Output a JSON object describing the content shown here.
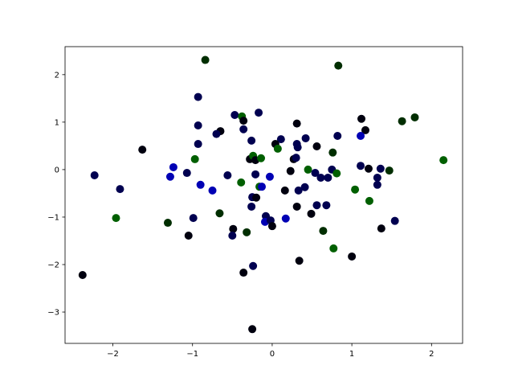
{
  "chart_data": {
    "type": "scatter",
    "title": "",
    "xlabel": "",
    "ylabel": "",
    "xlim": [
      -2.6,
      2.39
    ],
    "ylim": [
      -3.66,
      2.59
    ],
    "grid": false,
    "x_ticks": [
      -2,
      -1,
      0,
      1,
      2
    ],
    "y_ticks": [
      -3,
      -2,
      -1,
      0,
      1,
      2
    ],
    "x_tick_labels": [
      "−2",
      "−1",
      "0",
      "1",
      "2"
    ],
    "y_tick_labels": [
      "−3",
      "−2",
      "−1",
      "0",
      "1",
      "2"
    ],
    "colors": {
      "black": "#00000f",
      "navy": "#000050",
      "blue": "#0000b4",
      "darkgreen": "#002e00",
      "green": "#005f00"
    },
    "points": [
      [
        -0.84,
        2.31,
        "darkgreen"
      ],
      [
        0.83,
        2.19,
        "darkgreen"
      ],
      [
        -0.93,
        1.53,
        "navy"
      ],
      [
        -0.47,
        1.15,
        "navy"
      ],
      [
        -0.38,
        1.12,
        "green"
      ],
      [
        -0.36,
        1.03,
        "black"
      ],
      [
        -0.17,
        1.2,
        "navy"
      ],
      [
        1.12,
        1.07,
        "black"
      ],
      [
        1.63,
        1.02,
        "darkgreen"
      ],
      [
        1.79,
        1.1,
        "darkgreen"
      ],
      [
        -0.93,
        0.93,
        "navy"
      ],
      [
        -0.36,
        0.85,
        "navy"
      ],
      [
        -0.65,
        0.81,
        "black"
      ],
      [
        -0.7,
        0.75,
        "navy"
      ],
      [
        0.31,
        0.97,
        "black"
      ],
      [
        1.17,
        0.83,
        "black"
      ],
      [
        -1.63,
        0.42,
        "black"
      ],
      [
        -0.93,
        0.54,
        "navy"
      ],
      [
        -0.26,
        0.61,
        "navy"
      ],
      [
        0.11,
        0.64,
        "navy"
      ],
      [
        0.42,
        0.66,
        "navy"
      ],
      [
        0.82,
        0.71,
        "navy"
      ],
      [
        1.11,
        0.71,
        "blue"
      ],
      [
        0.04,
        0.54,
        "black"
      ],
      [
        0.07,
        0.44,
        "green"
      ],
      [
        0.31,
        0.54,
        "navy"
      ],
      [
        0.32,
        0.47,
        "navy"
      ],
      [
        0.56,
        0.49,
        "black"
      ],
      [
        0.76,
        0.36,
        "darkgreen"
      ],
      [
        -0.97,
        0.22,
        "green"
      ],
      [
        -0.28,
        0.22,
        "black"
      ],
      [
        -0.24,
        0.29,
        "green"
      ],
      [
        -0.21,
        0.2,
        "black"
      ],
      [
        -0.14,
        0.24,
        "green"
      ],
      [
        0.27,
        0.22,
        "black"
      ],
      [
        0.3,
        0.25,
        "navy"
      ],
      [
        -1.24,
        0.05,
        "blue"
      ],
      [
        1.11,
        0.08,
        "navy"
      ],
      [
        1.21,
        0.02,
        "black"
      ],
      [
        1.36,
        0.02,
        "navy"
      ],
      [
        1.47,
        -0.02,
        "darkgreen"
      ],
      [
        2.15,
        0.2,
        "green"
      ],
      [
        -2.23,
        -0.12,
        "navy"
      ],
      [
        -1.07,
        -0.07,
        "navy"
      ],
      [
        -1.28,
        -0.15,
        "blue"
      ],
      [
        -0.56,
        -0.12,
        "navy"
      ],
      [
        -0.21,
        -0.1,
        "navy"
      ],
      [
        -0.03,
        -0.15,
        "blue"
      ],
      [
        0.23,
        -0.03,
        "black"
      ],
      [
        0.45,
        0.0,
        "green"
      ],
      [
        0.54,
        -0.07,
        "navy"
      ],
      [
        0.61,
        -0.17,
        "navy"
      ],
      [
        0.7,
        -0.17,
        "navy"
      ],
      [
        0.75,
        0.0,
        "navy"
      ],
      [
        0.81,
        -0.08,
        "green"
      ],
      [
        1.32,
        -0.17,
        "navy"
      ],
      [
        1.32,
        -0.32,
        "navy"
      ],
      [
        -0.9,
        -0.32,
        "blue"
      ],
      [
        -0.75,
        -0.44,
        "blue"
      ],
      [
        -1.91,
        -0.41,
        "navy"
      ],
      [
        -0.39,
        -0.27,
        "green"
      ],
      [
        -0.16,
        -0.36,
        "green"
      ],
      [
        -0.13,
        -0.36,
        "blue"
      ],
      [
        0.16,
        -0.44,
        "black"
      ],
      [
        0.33,
        -0.44,
        "navy"
      ],
      [
        0.41,
        -0.37,
        "navy"
      ],
      [
        1.04,
        -0.42,
        "green"
      ],
      [
        1.22,
        -0.66,
        "green"
      ],
      [
        -0.25,
        -0.58,
        "navy"
      ],
      [
        -0.2,
        -0.59,
        "black"
      ],
      [
        -0.66,
        -0.92,
        "darkgreen"
      ],
      [
        -0.26,
        -0.78,
        "navy"
      ],
      [
        0.31,
        -0.78,
        "black"
      ],
      [
        0.56,
        -0.75,
        "navy"
      ],
      [
        0.68,
        -0.75,
        "navy"
      ],
      [
        -1.96,
        -1.02,
        "green"
      ],
      [
        -0.99,
        -1.02,
        "navy"
      ],
      [
        -0.08,
        -0.98,
        "navy"
      ],
      [
        -0.09,
        -1.1,
        "blue"
      ],
      [
        -0.02,
        -1.07,
        "navy"
      ],
      [
        0.0,
        -1.19,
        "black"
      ],
      [
        0.17,
        -1.03,
        "blue"
      ],
      [
        0.49,
        -0.93,
        "black"
      ],
      [
        -1.31,
        -1.12,
        "darkgreen"
      ],
      [
        1.54,
        -1.08,
        "navy"
      ],
      [
        1.37,
        -1.24,
        "black"
      ],
      [
        -0.49,
        -1.25,
        "black"
      ],
      [
        -0.32,
        -1.32,
        "darkgreen"
      ],
      [
        0.64,
        -1.29,
        "darkgreen"
      ],
      [
        -1.05,
        -1.39,
        "black"
      ],
      [
        -0.5,
        -1.39,
        "navy"
      ],
      [
        0.77,
        -1.66,
        "green"
      ],
      [
        1.0,
        -1.83,
        "black"
      ],
      [
        0.34,
        -1.92,
        "black"
      ],
      [
        -0.24,
        -2.03,
        "navy"
      ],
      [
        -0.36,
        -2.17,
        "black"
      ],
      [
        -2.38,
        -2.22,
        "black"
      ],
      [
        -0.25,
        -3.36,
        "black"
      ]
    ]
  }
}
